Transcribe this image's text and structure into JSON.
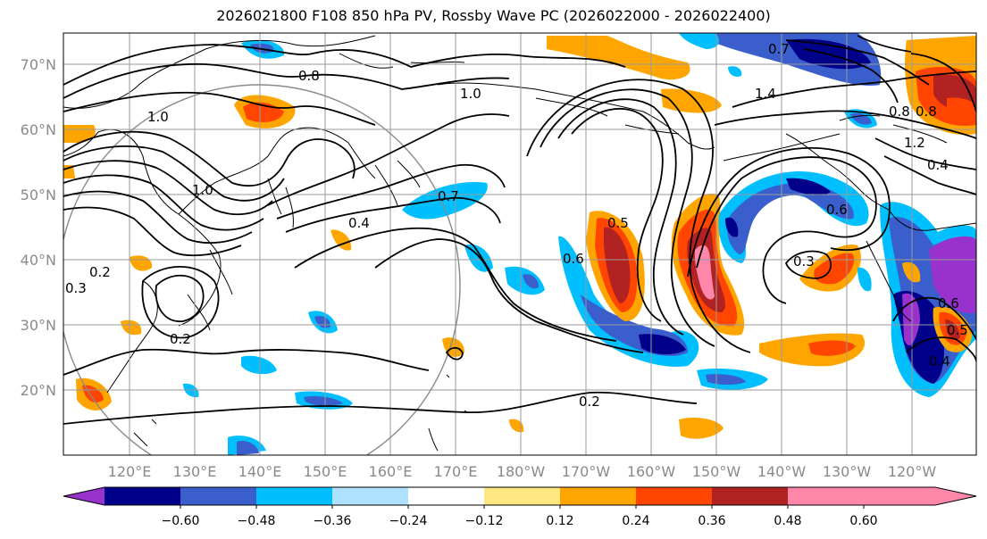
{
  "title": "2026021800 F108 850 hPa PV, Rossby Wave PC (2026022000 - 2026022400)",
  "axes": {
    "lat_labels": [
      "70°N",
      "60°N",
      "50°N",
      "40°N",
      "30°N",
      "20°N"
    ],
    "lon_labels": [
      "120°E",
      "130°E",
      "140°E",
      "150°E",
      "160°E",
      "170°E",
      "180°W",
      "170°W",
      "160°W",
      "150°W",
      "140°W",
      "130°W",
      "120°W"
    ]
  },
  "colorbar": {
    "tick_labels": [
      "−0.60",
      "−0.48",
      "−0.36",
      "−0.24",
      "−0.12",
      "0.12",
      "0.24",
      "0.36",
      "0.48",
      "0.60"
    ],
    "colors": [
      "#9932cc",
      "#00008b",
      "#3a5fcd",
      "#00bfff",
      "#aee2ff",
      "#ffffff",
      "#ffe884",
      "#ffa500",
      "#ff4500",
      "#b22222",
      "#ff88aa"
    ]
  },
  "contour_labels": [
    "0.8",
    "0.8",
    "1.0",
    "1.0",
    "1.4",
    "0.8",
    "1.2",
    "0.4",
    "0.3",
    "0.5",
    "0.6",
    "0.7",
    "0.4",
    "0.2",
    "0.2",
    "0.2",
    "0.3",
    "1.0",
    "0.4",
    "0.6",
    "0.5",
    "0.6",
    "0.7"
  ]
}
